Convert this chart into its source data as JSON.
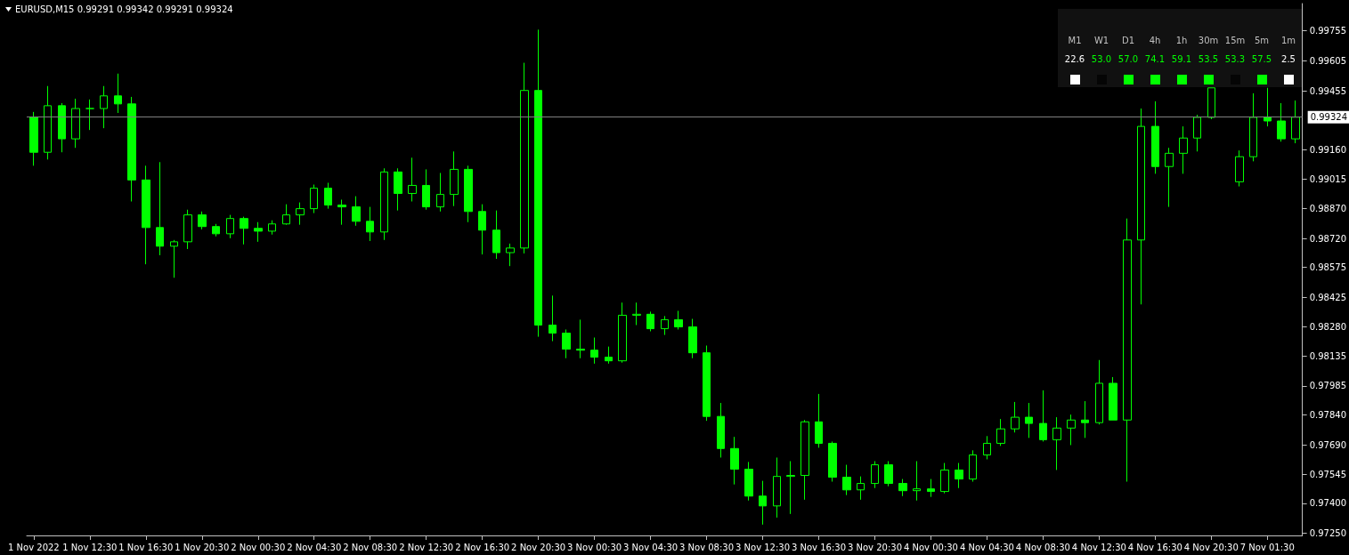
{
  "chart_data": {
    "type": "candlestick",
    "title": "EURUSD,M15 0.99291 0.99342 0.99291 0.99324",
    "categories": [
      "1 Nov 2022",
      null,
      null,
      null,
      "1 Nov 12:30",
      null,
      null,
      null,
      "1 Nov 16:30",
      null,
      null,
      null,
      "1 Nov 20:30",
      null,
      null,
      null,
      "2 Nov 00:30",
      null,
      null,
      null,
      "2 Nov 04:30",
      null,
      null,
      null,
      "2 Nov 08:30",
      null,
      null,
      null,
      "2 Nov 12:30",
      null,
      null,
      null,
      "2 Nov 16:30",
      null,
      null,
      null,
      "2 Nov 20:30",
      null,
      null,
      null,
      "3 Nov 00:30",
      null,
      null,
      null,
      "3 Nov 04:30",
      null,
      null,
      null,
      "3 Nov 08:30",
      null,
      null,
      null,
      "3 Nov 12:30",
      null,
      null,
      null,
      "3 Nov 16:30",
      null,
      null,
      null,
      "3 Nov 20:30",
      null,
      null,
      null,
      "4 Nov 00:30",
      null,
      null,
      null,
      "4 Nov 04:30",
      null,
      null,
      null,
      "4 Nov 08:30",
      null,
      null,
      null,
      "4 Nov 12:30",
      null,
      null,
      null,
      "4 Nov 16:30",
      null,
      null,
      null,
      "4 Nov 20:30",
      null,
      null,
      null,
      "7 Nov 01:30",
      null,
      null
    ],
    "ohlc": [
      [
        0.99323,
        0.9935,
        0.99082,
        0.99149
      ],
      [
        0.99149,
        0.99479,
        0.99113,
        0.99381
      ],
      [
        0.99381,
        0.99394,
        0.99149,
        0.99216
      ],
      [
        0.99216,
        0.99416,
        0.99171,
        0.99367
      ],
      [
        0.99367,
        0.99412,
        0.9926,
        0.99367
      ],
      [
        0.99367,
        0.99479,
        0.99269,
        0.9943
      ],
      [
        0.9943,
        0.99541,
        0.99345,
        0.9939
      ],
      [
        0.9939,
        0.99425,
        0.98904,
        0.99011
      ],
      [
        0.99011,
        0.99082,
        0.98591,
        0.98774
      ],
      [
        0.98774,
        0.991,
        0.98636,
        0.98681
      ],
      [
        0.98681,
        0.98712,
        0.98524,
        0.98703
      ],
      [
        0.98703,
        0.98863,
        0.98667,
        0.98837
      ],
      [
        0.98837,
        0.98854,
        0.98765,
        0.98779
      ],
      [
        0.98779,
        0.98792,
        0.9873,
        0.98743
      ],
      [
        0.98743,
        0.98837,
        0.98721,
        0.98819
      ],
      [
        0.98819,
        0.98828,
        0.9869,
        0.9877
      ],
      [
        0.9877,
        0.98801,
        0.98703,
        0.98756
      ],
      [
        0.98756,
        0.9881,
        0.98739,
        0.98792
      ],
      [
        0.98792,
        0.9889,
        0.98788,
        0.98837
      ],
      [
        0.98837,
        0.98899,
        0.98788,
        0.98868
      ],
      [
        0.98868,
        0.98988,
        0.98846,
        0.9897
      ],
      [
        0.9897,
        0.98997,
        0.98868,
        0.98886
      ],
      [
        0.98886,
        0.98913,
        0.98788,
        0.98877
      ],
      [
        0.98877,
        0.9893,
        0.98783,
        0.98805
      ],
      [
        0.98805,
        0.98877,
        0.98707,
        0.98752
      ],
      [
        0.98752,
        0.99069,
        0.98712,
        0.99051
      ],
      [
        0.99051,
        0.99069,
        0.98859,
        0.98944
      ],
      [
        0.98944,
        0.99122,
        0.98904,
        0.98984
      ],
      [
        0.98984,
        0.99064,
        0.98863,
        0.98877
      ],
      [
        0.98877,
        0.99046,
        0.98854,
        0.98939
      ],
      [
        0.98939,
        0.99153,
        0.98881,
        0.99064
      ],
      [
        0.99064,
        0.99082,
        0.98801,
        0.98854
      ],
      [
        0.98854,
        0.9889,
        0.9864,
        0.98761
      ],
      [
        0.98761,
        0.98859,
        0.98618,
        0.98649
      ],
      [
        0.98649,
        0.98694,
        0.98582,
        0.98672
      ],
      [
        0.98672,
        0.99595,
        0.98645,
        0.99457
      ],
      [
        0.99457,
        0.9976,
        0.9823,
        0.98288
      ],
      [
        0.98288,
        0.98435,
        0.98208,
        0.98248
      ],
      [
        0.98248,
        0.98266,
        0.98123,
        0.98168
      ],
      [
        0.98168,
        0.98315,
        0.98123,
        0.98163
      ],
      [
        0.98163,
        0.98226,
        0.98096,
        0.98128
      ],
      [
        0.98128,
        0.98181,
        0.98096,
        0.9811
      ],
      [
        0.9811,
        0.984,
        0.98101,
        0.98337
      ],
      [
        0.98337,
        0.984,
        0.98288,
        0.98342
      ],
      [
        0.98342,
        0.98355,
        0.98257,
        0.9827
      ],
      [
        0.9827,
        0.98333,
        0.98239,
        0.98315
      ],
      [
        0.98315,
        0.98359,
        0.98266,
        0.98279
      ],
      [
        0.98279,
        0.98319,
        0.98123,
        0.9815
      ],
      [
        0.9815,
        0.98186,
        0.97811,
        0.97833
      ],
      [
        0.97833,
        0.979,
        0.97628,
        0.97673
      ],
      [
        0.97673,
        0.97731,
        0.97494,
        0.9757
      ],
      [
        0.9757,
        0.97606,
        0.97414,
        0.97436
      ],
      [
        0.97436,
        0.97512,
        0.97294,
        0.97387
      ],
      [
        0.97387,
        0.97628,
        0.97329,
        0.97534
      ],
      [
        0.97534,
        0.9761,
        0.97347,
        0.97539
      ],
      [
        0.97539,
        0.97815,
        0.97418,
        0.97806
      ],
      [
        0.97806,
        0.97945,
        0.97677,
        0.97699
      ],
      [
        0.97699,
        0.97708,
        0.97508,
        0.9753
      ],
      [
        0.9753,
        0.97592,
        0.97441,
        0.97467
      ],
      [
        0.97467,
        0.97534,
        0.97418,
        0.97499
      ],
      [
        0.97499,
        0.9761,
        0.97476,
        0.97592
      ],
      [
        0.97592,
        0.9761,
        0.97485,
        0.97499
      ],
      [
        0.97499,
        0.97521,
        0.97436,
        0.97463
      ],
      [
        0.97463,
        0.9761,
        0.97414,
        0.97472
      ],
      [
        0.97472,
        0.97521,
        0.97432,
        0.97459
      ],
      [
        0.97459,
        0.97601,
        0.9745,
        0.97566
      ],
      [
        0.97566,
        0.97601,
        0.97476,
        0.97521
      ],
      [
        0.97521,
        0.97664,
        0.97508,
        0.97641
      ],
      [
        0.97641,
        0.97735,
        0.97619,
        0.97699
      ],
      [
        0.97699,
        0.9782,
        0.97686,
        0.97771
      ],
      [
        0.97771,
        0.97905,
        0.97753,
        0.97829
      ],
      [
        0.97829,
        0.979,
        0.97726,
        0.97798
      ],
      [
        0.97798,
        0.97963,
        0.97708,
        0.97717
      ],
      [
        0.97717,
        0.97829,
        0.97566,
        0.97775
      ],
      [
        0.97775,
        0.97842,
        0.9769,
        0.97815
      ],
      [
        0.97815,
        0.97909,
        0.97726,
        0.97802
      ],
      [
        0.97802,
        0.98114,
        0.97793,
        0.97998
      ],
      [
        0.97998,
        0.98029,
        0.97815,
        0.97815
      ],
      [
        0.97815,
        0.98819,
        0.97508,
        0.98712
      ],
      [
        0.98712,
        0.99367,
        0.98391,
        0.99278
      ],
      [
        0.99278,
        0.99403,
        0.99042,
        0.99078
      ],
      [
        0.99078,
        0.99171,
        0.98877,
        0.99144
      ],
      [
        0.99144,
        0.99278,
        0.99042,
        0.9922
      ],
      [
        0.9922,
        0.99336,
        0.99153,
        0.99323
      ],
      [
        0.99323,
        0.9947,
        0.99314,
        0.9947
      ],
      null,
      [
        0.99002,
        0.99158,
        0.98979,
        0.99127
      ],
      [
        0.99127,
        0.99443,
        0.99104,
        0.99323
      ],
      [
        0.99323,
        0.9947,
        0.99278,
        0.99305
      ],
      [
        0.99305,
        0.99394,
        0.99202,
        0.99216
      ],
      [
        0.99216,
        0.99407,
        0.99194,
        0.99324
      ]
    ],
    "color": "#00ff00",
    "ylim": [
      0.9724,
      0.9989
    ],
    "yticks": [
      {
        "value": 0.9725,
        "label": "0.97250"
      },
      {
        "value": 0.974,
        "label": "0.97400"
      },
      0.97545,
      {
        "value": 0.9769,
        "label": "0.97690"
      },
      {
        "value": 0.9784,
        "label": "0.97840"
      },
      0.97985,
      0.98135,
      {
        "value": 0.9828,
        "label": "0.98280"
      },
      0.98425,
      0.98575,
      {
        "value": 0.9872,
        "label": "0.98720"
      },
      {
        "value": 0.9887,
        "label": "0.98870"
      },
      0.99015,
      {
        "value": 0.9916,
        "label": "0.99160"
      },
      0.99455,
      0.99605,
      0.99755
    ],
    "ref_lines": [
      {
        "axis": "y",
        "value": 0.99324,
        "label": "0.99324",
        "color": "#808080"
      }
    ],
    "annotations": [
      "M1",
      "W1",
      "D1",
      "4h",
      "1h",
      "30m",
      "15m",
      "5m",
      "1m",
      "22.6",
      "53.0",
      "57.0",
      "74.1",
      "59.1",
      "53.5",
      "53.3",
      "57.5",
      "2.5"
    ],
    "grid": false
  }
}
